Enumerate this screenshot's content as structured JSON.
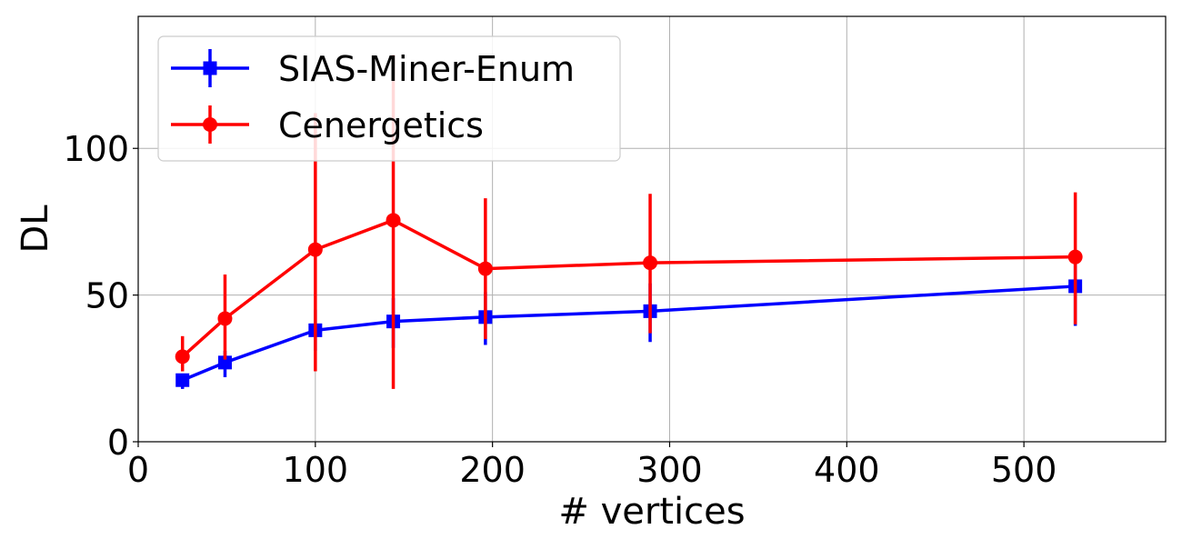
{
  "chart_data": {
    "type": "line",
    "title": "",
    "xlabel": "# vertices",
    "ylabel": "DL",
    "xlim": [
      0,
      580
    ],
    "ylim": [
      0,
      145
    ],
    "x_ticks": [
      0,
      100,
      200,
      300,
      400,
      500
    ],
    "y_ticks": [
      0,
      50,
      100
    ],
    "grid": true,
    "legend_position": "top-left",
    "x": [
      25,
      49,
      100,
      144,
      196,
      289,
      529
    ],
    "series": [
      {
        "name": "SIAS-Miner-Enum",
        "color": "#0000ff",
        "marker": "square",
        "values": [
          21,
          27,
          38,
          41,
          42.5,
          44.5,
          53
        ],
        "err_low": [
          18,
          22,
          31,
          32,
          33,
          34,
          39.5
        ],
        "err_high": [
          23,
          31,
          45,
          49,
          51,
          54,
          65
        ]
      },
      {
        "name": "Cenergetics",
        "color": "#ff0000",
        "marker": "circle",
        "values": [
          29,
          42,
          65.5,
          75.5,
          59,
          61,
          63
        ],
        "err_low": [
          24,
          28,
          24,
          18,
          35,
          37,
          40
        ],
        "err_high": [
          36,
          57,
          112,
          132,
          83,
          84.5,
          85
        ]
      }
    ]
  }
}
